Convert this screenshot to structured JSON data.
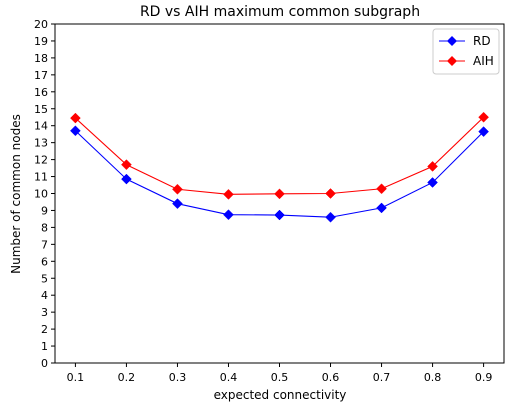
{
  "chart_data": {
    "type": "line",
    "title": "RD vs AIH maximum common subgraph",
    "xlabel": "expected connectivity",
    "ylabel": "Number of common nodes",
    "x": [
      0.1,
      0.2,
      0.3,
      0.4,
      0.5,
      0.6,
      0.7,
      0.8,
      0.9
    ],
    "x_tick_labels": [
      "0.1",
      "0.2",
      "0.3",
      "0.4",
      "0.5",
      "0.6",
      "0.7",
      "0.8",
      "0.9"
    ],
    "xlim": [
      0.06,
      0.94
    ],
    "ylim": [
      0,
      20
    ],
    "y_ticks": [
      0,
      1,
      2,
      3,
      4,
      5,
      6,
      7,
      8,
      9,
      10,
      11,
      12,
      13,
      14,
      15,
      16,
      17,
      18,
      19,
      20
    ],
    "grid": false,
    "legend_position": "top-right",
    "series": [
      {
        "name": "RD",
        "color": "#0000ff",
        "marker": "diamond",
        "values": [
          13.7,
          10.85,
          9.4,
          8.75,
          8.73,
          8.6,
          9.15,
          10.65,
          13.65
        ]
      },
      {
        "name": "AIH",
        "color": "#ff0000",
        "marker": "diamond",
        "values": [
          14.45,
          11.7,
          10.25,
          9.95,
          9.98,
          10.0,
          10.28,
          11.6,
          14.5
        ]
      }
    ]
  }
}
